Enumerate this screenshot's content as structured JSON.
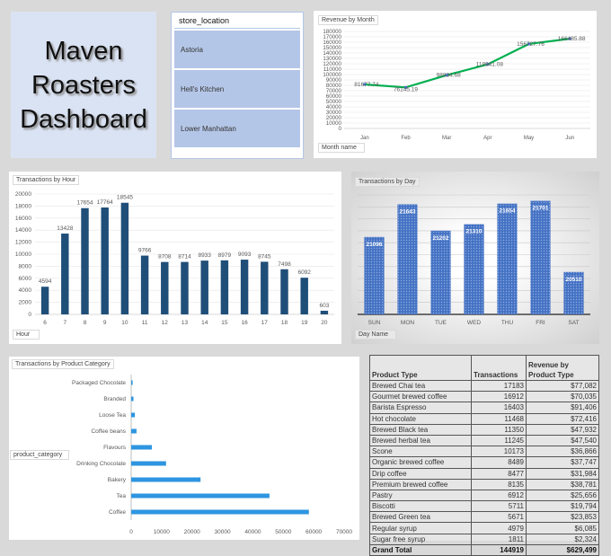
{
  "title": {
    "lines": [
      "Maven",
      "Roasters",
      "Dashboard"
    ]
  },
  "slicer": {
    "header": "store_location",
    "items": [
      "Astoria",
      "Hell's Kitchen",
      "Lower Manhattan"
    ]
  },
  "colors": {
    "line": "#00b050",
    "marker": "#4472c4",
    "hour_bar": "#1f4e79",
    "day_bar": "#4472c4",
    "cat_bar": "#2e95e0"
  },
  "chart_data": [
    {
      "id": "revenue",
      "type": "line",
      "title": "Revenue by Month",
      "field_button": "Month name",
      "categories": [
        "Jan",
        "Feb",
        "Mar",
        "Apr",
        "May",
        "Jun"
      ],
      "values": [
        81677.74,
        76145.19,
        98834.68,
        118941.08,
        156727.76,
        166485.88
      ],
      "labels": [
        "81677.74",
        "76145.19",
        "98834.68",
        "118941.08",
        "156727.76",
        "166485.88"
      ],
      "ylim": [
        0,
        180000
      ],
      "ytick_step": 10000,
      "grid": true
    },
    {
      "id": "hour",
      "type": "bar",
      "title": "Transactions by Hour",
      "field_button": "Hour",
      "categories": [
        "6",
        "7",
        "8",
        "9",
        "10",
        "11",
        "12",
        "13",
        "14",
        "15",
        "16",
        "17",
        "18",
        "19",
        "20"
      ],
      "values": [
        4594,
        13428,
        17654,
        17764,
        18545,
        9766,
        8708,
        8714,
        8933,
        8979,
        9093,
        8745,
        7498,
        6092,
        603
      ],
      "ylim": [
        0,
        20000
      ],
      "ytick_step": 2000,
      "grid": true
    },
    {
      "id": "day",
      "type": "bar",
      "title": "Transactions by Day",
      "field_button": "Day Name",
      "categories": [
        "SUN",
        "MON",
        "TUE",
        "WED",
        "THU",
        "FRI",
        "SAT"
      ],
      "values": [
        21096,
        21643,
        21202,
        21310,
        21654,
        21701,
        20510
      ],
      "ylim": [
        19800,
        21800
      ],
      "ytick_step": 200,
      "grid": true
    },
    {
      "id": "category",
      "type": "bar",
      "orientation": "horizontal",
      "title": "Transactions by Product Category",
      "field_button": "product_category",
      "categories": [
        "Packaged Chocolate",
        "Branded",
        "Loose Tea",
        "Coffee beans",
        "Flavours",
        "Drinking Chocolate",
        "Bakery",
        "Tea",
        "Coffee"
      ],
      "values": [
        487,
        747,
        1210,
        1753,
        6790,
        11468,
        22796,
        45449,
        58416
      ],
      "xlim": [
        0,
        70000
      ],
      "xtick_step": 10000,
      "grid": false
    }
  ],
  "table": {
    "headers": [
      "Product Type",
      "Transactions",
      "Revenue by Product Type"
    ],
    "rows": [
      [
        "Brewed Chai tea",
        "17183",
        "$77,082"
      ],
      [
        "Gourmet brewed coffee",
        "16912",
        "$70,035"
      ],
      [
        "Barista Espresso",
        "16403",
        "$91,406"
      ],
      [
        "Hot chocolate",
        "11468",
        "$72,416"
      ],
      [
        "Brewed Black tea",
        "11350",
        "$47,932"
      ],
      [
        "Brewed herbal tea",
        "11245",
        "$47,540"
      ],
      [
        "Scone",
        "10173",
        "$36,866"
      ],
      [
        "Organic brewed coffee",
        "8489",
        "$37,747"
      ],
      [
        "Drip coffee",
        "8477",
        "$31,984"
      ],
      [
        "Premium brewed coffee",
        "8135",
        "$38,781"
      ],
      [
        "Pastry",
        "6912",
        "$25,656"
      ],
      [
        "Biscotti",
        "5711",
        "$19,794"
      ],
      [
        "Brewed Green tea",
        "5671",
        "$23,853"
      ],
      [
        "Regular syrup",
        "4979",
        "$6,085"
      ],
      [
        "Sugar free syrup",
        "1811",
        "$2,324"
      ]
    ],
    "total": [
      "Grand Total",
      "144919",
      "$629,499"
    ]
  }
}
